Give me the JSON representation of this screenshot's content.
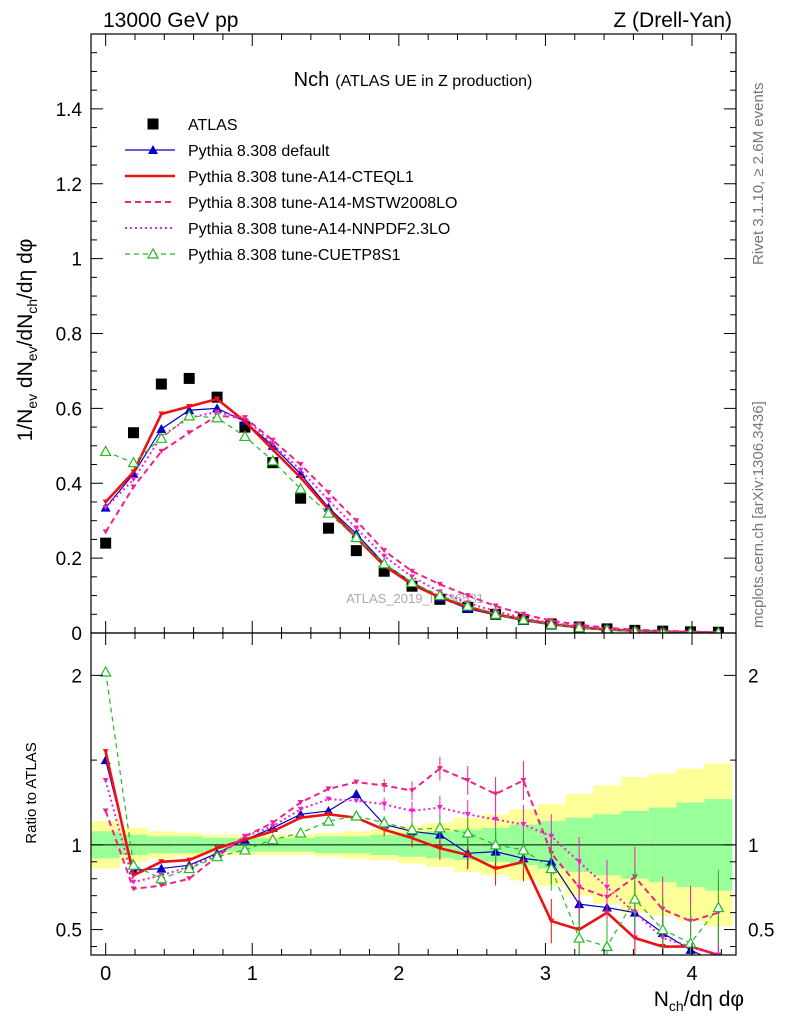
{
  "header": {
    "left": "13000 GeV pp",
    "right": "Z (Drell-Yan)"
  },
  "side_labels": {
    "rivet": "Rivet 3.1.10, ≥ 2.6M events",
    "mcplots": "mcplots.cern.ch [arXiv:1306.3436]"
  },
  "watermark": "ATLAS_2019_I1736531",
  "colors": {
    "atlas": "#000000",
    "default": "#0000cc",
    "cteql1": "#ee1111",
    "mstw": "#ee2288",
    "nnpdf": "#ee22cc",
    "cuetp8s1": "#22bb22",
    "band_inner": "#99ff99",
    "band_outer": "#ffff99"
  },
  "chart_data": [
    {
      "type": "scatter",
      "title": "Nch",
      "subtitle": "(ATLAS UE in Z production)",
      "ylabel": "1/N_ev dN_ev/dN_ch/dη dφ",
      "xlim": [
        -0.1,
        4.3
      ],
      "ylim": [
        0,
        1.6
      ],
      "yticks": [
        0,
        0.2,
        0.4,
        0.6,
        0.8,
        1,
        1.2,
        1.4
      ],
      "ytick_labels": [
        "0",
        "0.2",
        "0.4",
        "0.6",
        "0.8",
        "1",
        "1.2",
        "1.4"
      ],
      "x": [
        0,
        0.19,
        0.38,
        0.57,
        0.76,
        0.95,
        1.14,
        1.33,
        1.52,
        1.71,
        1.9,
        2.09,
        2.28,
        2.47,
        2.66,
        2.85,
        3.04,
        3.23,
        3.42,
        3.61,
        3.8,
        3.99,
        4.18
      ],
      "series": [
        {
          "name": "ATLAS",
          "key": "atlas",
          "style": "square",
          "values": [
            0.24,
            0.535,
            0.665,
            0.68,
            0.63,
            0.55,
            0.455,
            0.36,
            0.28,
            0.22,
            0.165,
            0.125,
            0.09,
            0.068,
            0.05,
            0.036,
            0.024,
            0.016,
            0.011,
            0.007,
            0.005,
            0.003,
            0.002
          ]
        },
        {
          "name": "Pythia 8.308 default",
          "key": "default",
          "style": "solid-triangle",
          "values": [
            0.335,
            0.425,
            0.545,
            0.595,
            0.6,
            0.565,
            0.5,
            0.425,
            0.335,
            0.265,
            0.185,
            0.135,
            0.095,
            0.065,
            0.048,
            0.033,
            0.022,
            0.013,
            0.008,
            0.005,
            0.003,
            0.002,
            0.001
          ]
        },
        {
          "name": "Pythia 8.308 tune-A14-CTEQL1",
          "key": "cteql1",
          "style": "solid-line",
          "values": [
            0.35,
            0.43,
            0.585,
            0.605,
            0.625,
            0.565,
            0.49,
            0.415,
            0.33,
            0.255,
            0.18,
            0.13,
            0.095,
            0.07,
            0.05,
            0.036,
            0.024,
            0.015,
            0.009,
            0.006,
            0.004,
            0.002,
            0.001
          ]
        },
        {
          "name": "Pythia 8.308 tune-A14-MSTW2008LO",
          "key": "mstw",
          "style": "dashed",
          "values": [
            0.27,
            0.39,
            0.485,
            0.535,
            0.58,
            0.575,
            0.515,
            0.45,
            0.375,
            0.3,
            0.22,
            0.165,
            0.13,
            0.1,
            0.072,
            0.05,
            0.033,
            0.022,
            0.014,
            0.009,
            0.006,
            0.004,
            0.002
          ]
        },
        {
          "name": "Pythia 8.308 tune-A14-NNPDF2.3LO",
          "key": "nnpdf",
          "style": "dotted",
          "values": [
            0.335,
            0.41,
            0.525,
            0.575,
            0.59,
            0.575,
            0.505,
            0.435,
            0.355,
            0.28,
            0.205,
            0.15,
            0.11,
            0.08,
            0.058,
            0.04,
            0.027,
            0.018,
            0.011,
            0.007,
            0.004,
            0.003,
            0.002
          ]
        },
        {
          "name": "Pythia 8.308 tune-CUETP8S1",
          "key": "cuetp8s1",
          "style": "dashed-open-triangle",
          "values": [
            0.485,
            0.455,
            0.52,
            0.58,
            0.575,
            0.525,
            0.46,
            0.385,
            0.32,
            0.255,
            0.185,
            0.135,
            0.1,
            0.072,
            0.05,
            0.035,
            0.023,
            0.014,
            0.008,
            0.005,
            0.003,
            0.002,
            0.001
          ]
        }
      ]
    },
    {
      "type": "line",
      "ylabel": "Ratio to ATLAS",
      "xlabel": "N_ch/dη dφ",
      "xlim": [
        -0.1,
        4.3
      ],
      "ylim": [
        0.35,
        2.25
      ],
      "xticks": [
        0,
        1,
        2,
        3,
        4
      ],
      "xtick_labels": [
        "0",
        "1",
        "2",
        "3",
        "4"
      ],
      "yticks": [
        0.5,
        1,
        2
      ],
      "ytick_labels": [
        "0.5",
        "1",
        "2"
      ],
      "x": [
        0,
        0.19,
        0.38,
        0.57,
        0.76,
        0.95,
        1.14,
        1.33,
        1.52,
        1.71,
        1.9,
        2.09,
        2.28,
        2.47,
        2.66,
        2.85,
        3.04,
        3.23,
        3.42,
        3.61,
        3.8,
        3.99,
        4.18
      ],
      "band_inner_halfwidth": [
        0.08,
        0.06,
        0.05,
        0.05,
        0.04,
        0.04,
        0.04,
        0.04,
        0.05,
        0.05,
        0.06,
        0.07,
        0.08,
        0.09,
        0.1,
        0.12,
        0.14,
        0.16,
        0.18,
        0.2,
        0.22,
        0.25,
        0.27
      ],
      "band_outer_halfwidth": [
        0.14,
        0.1,
        0.08,
        0.07,
        0.06,
        0.06,
        0.06,
        0.06,
        0.07,
        0.08,
        0.09,
        0.11,
        0.13,
        0.16,
        0.18,
        0.21,
        0.24,
        0.3,
        0.35,
        0.4,
        0.42,
        0.45,
        0.48
      ],
      "series": [
        {
          "name": "Pythia 8.308 default",
          "key": "default",
          "style": "solid-triangle",
          "values": [
            1.5,
            0.85,
            0.86,
            0.88,
            0.95,
            1.03,
            1.1,
            1.18,
            1.2,
            1.3,
            1.12,
            1.08,
            1.06,
            0.95,
            0.96,
            0.92,
            0.9,
            0.65,
            0.63,
            0.6,
            0.48,
            0.38,
            0.3
          ]
        },
        {
          "name": "Pythia 8.308 tune-A14-CTEQL1",
          "key": "cteql1",
          "style": "solid-line",
          "values": [
            1.55,
            0.82,
            0.9,
            0.91,
            0.98,
            1.03,
            1.08,
            1.16,
            1.18,
            1.16,
            1.09,
            1.04,
            0.98,
            0.94,
            0.86,
            0.9,
            0.55,
            0.5,
            0.6,
            0.45,
            0.4,
            0.4,
            0.35
          ]
        },
        {
          "name": "Pythia 8.308 tune-A14-MSTW2008LO",
          "key": "mstw",
          "style": "dashed",
          "values": [
            1.2,
            0.74,
            0.76,
            0.8,
            0.93,
            1.05,
            1.13,
            1.25,
            1.33,
            1.37,
            1.35,
            1.32,
            1.45,
            1.38,
            1.3,
            1.38,
            0.95,
            0.75,
            0.69,
            0.81,
            0.62,
            0.55,
            0.6
          ]
        },
        {
          "name": "Pythia 8.308 tune-A14-NNPDF2.3LO",
          "key": "nnpdf",
          "style": "dotted",
          "values": [
            1.38,
            0.78,
            0.82,
            0.87,
            0.94,
            1.05,
            1.11,
            1.21,
            1.27,
            1.26,
            1.24,
            1.2,
            1.22,
            1.18,
            1.15,
            1.12,
            1.05,
            0.9,
            0.75,
            0.6,
            0.45,
            0.4,
            0.35
          ]
        },
        {
          "name": "Pythia 8.308 tune-CUETP8S1",
          "key": "cuetp8s1",
          "style": "dashed-open-triangle",
          "values": [
            2.02,
            0.88,
            0.8,
            0.86,
            0.93,
            0.97,
            1.03,
            1.07,
            1.14,
            1.17,
            1.13,
            1.09,
            1.1,
            1.07,
            1.0,
            0.97,
            0.86,
            0.45,
            0.4,
            0.68,
            0.5,
            0.42,
            0.63
          ]
        }
      ]
    }
  ]
}
